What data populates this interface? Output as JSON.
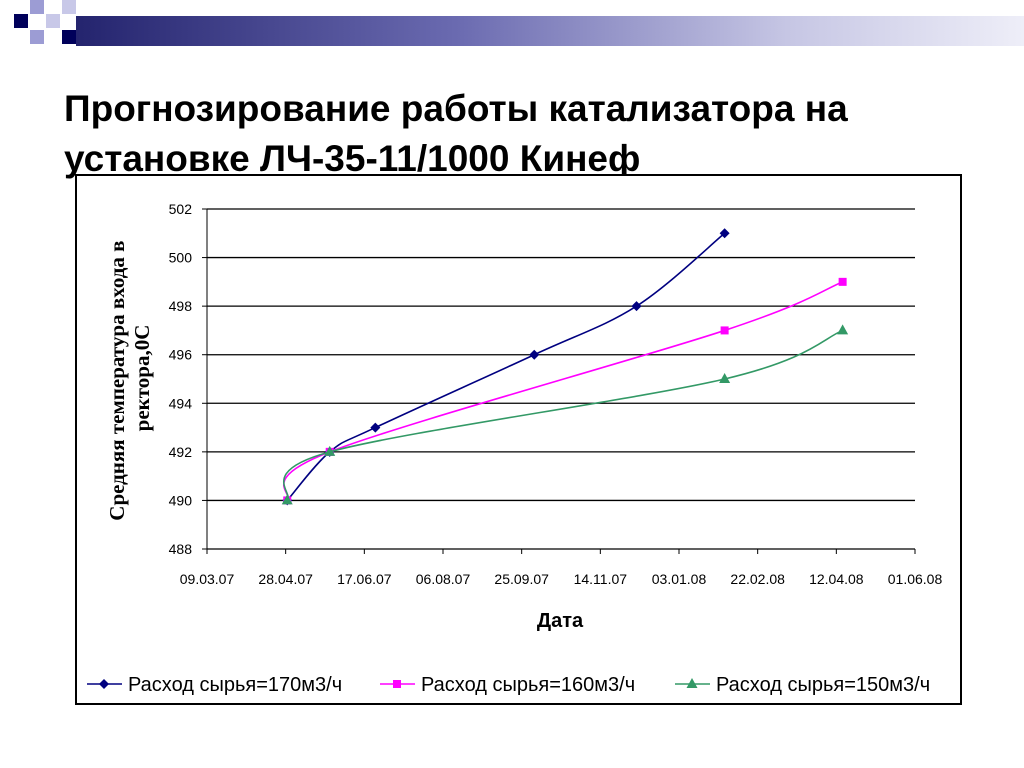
{
  "slide": {
    "title_line1": "Прогнозирование работы катализатора на",
    "title_line2": "установке ЛЧ-35-11/1000 Кинеф"
  },
  "chart_data": {
    "type": "line",
    "title": "",
    "xlabel": "Дата",
    "ylabel_line1": "Средняя температура входа в",
    "ylabel_line2": "ректора,0С",
    "x_tick_labels": [
      "09.03.07",
      "28.04.07",
      "17.06.07",
      "06.08.07",
      "25.09.07",
      "14.11.07",
      "03.01.08",
      "22.02.08",
      "12.04.08",
      "01.06.08"
    ],
    "y_tick_labels": [
      "488",
      "490",
      "492",
      "494",
      "496",
      "498",
      "500",
      "502"
    ],
    "xlim": [
      "2007-03-09",
      "2008-06-01"
    ],
    "ylim": [
      488,
      502
    ],
    "grid": "horizontal",
    "legend_position": "bottom",
    "series": [
      {
        "name": "Расход сырья=170м3/ч",
        "color": "#000080",
        "marker": "diamond",
        "points": [
          [
            "2007-04-29",
            490
          ],
          [
            "2007-05-26",
            492
          ],
          [
            "2007-06-24",
            493
          ],
          [
            "2007-10-03",
            496
          ],
          [
            "2007-12-07",
            498
          ],
          [
            "2008-02-01",
            501
          ]
        ]
      },
      {
        "name": "Расход сырья=160м3/ч",
        "color": "#ff00ff",
        "marker": "square",
        "points": [
          [
            "2007-04-29",
            490
          ],
          [
            "2007-05-26",
            492
          ],
          [
            "2008-02-01",
            497
          ],
          [
            "2008-04-16",
            499
          ]
        ]
      },
      {
        "name": "Расход сырья=150м3/ч",
        "color": "#339966",
        "marker": "triangle",
        "points": [
          [
            "2007-04-29",
            490
          ],
          [
            "2007-05-26",
            492
          ],
          [
            "2008-02-01",
            495
          ],
          [
            "2008-04-16",
            497
          ]
        ]
      }
    ]
  }
}
